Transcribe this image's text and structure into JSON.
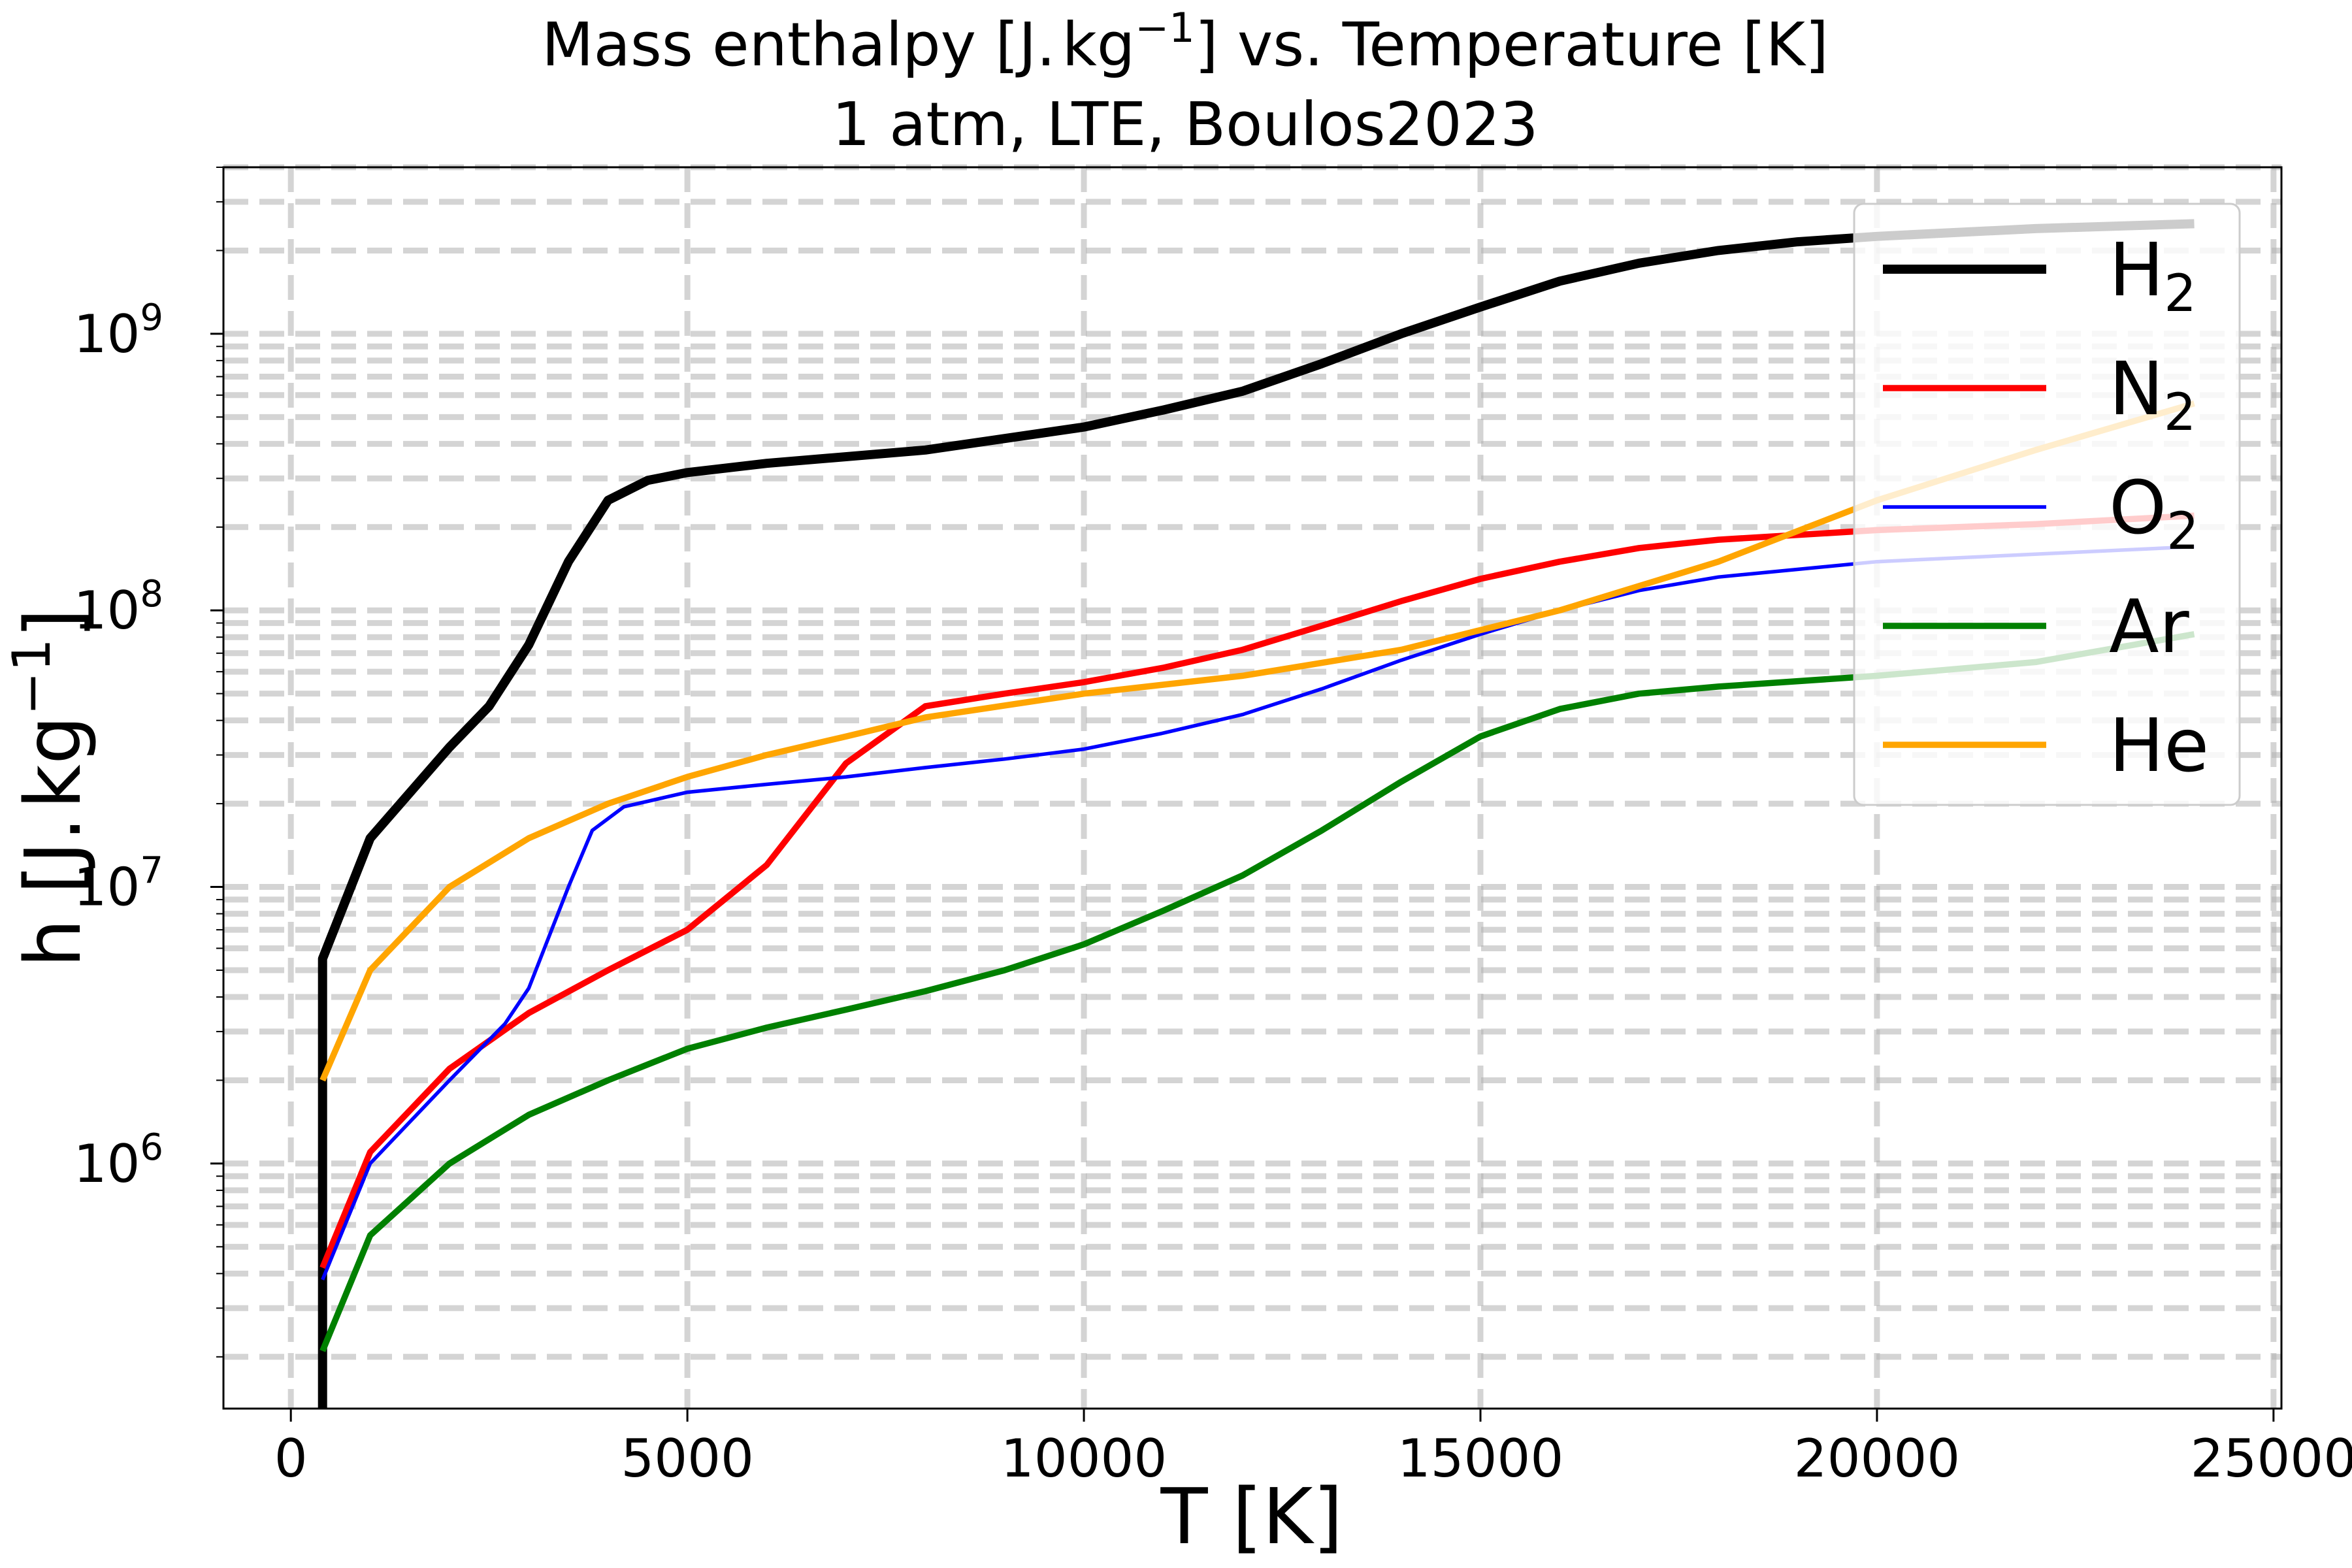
{
  "chart_data": {
    "type": "line",
    "title": {
      "line1": {
        "pre": "Mass enthalpy [J.",
        "unit": "kg",
        "exp": "−1",
        "post": "] vs. Temperature [K]"
      },
      "line2": "1 atm, LTE, Boulos2023"
    },
    "xlabel": "T [K]",
    "ylabel": {
      "pre": "h [J.",
      "unit": "kg",
      "exp": "−1",
      "post": "]"
    },
    "xlim": [
      -850,
      25100
    ],
    "ylim": [
      130000,
      4000000000
    ],
    "yscale": "log",
    "grid": true,
    "legend_position": "top-right",
    "x_ticks": [
      0,
      5000,
      10000,
      15000,
      20000,
      25000
    ],
    "x_tick_labels": [
      "0",
      "5000",
      "10000",
      "15000",
      "20000",
      "25000"
    ],
    "y_ticks": [
      {
        "value": 1000000,
        "base": "10",
        "exp": "6"
      },
      {
        "value": 10000000,
        "base": "10",
        "exp": "7"
      },
      {
        "value": 100000000,
        "base": "10",
        "exp": "8"
      },
      {
        "value": 1000000000,
        "base": "10",
        "exp": "9"
      }
    ],
    "series": [
      {
        "name": "H",
        "name_sub": "2",
        "color": "#000000",
        "width": "thick",
        "points": [
          [
            400,
            130000
          ],
          [
            400,
            5500000
          ],
          [
            1000,
            15000000
          ],
          [
            2000,
            32000000
          ],
          [
            2500,
            45000000
          ],
          [
            3000,
            75000000
          ],
          [
            3500,
            150000000
          ],
          [
            4000,
            250000000
          ],
          [
            4500,
            295000000
          ],
          [
            5000,
            315000000
          ],
          [
            6000,
            340000000
          ],
          [
            8000,
            380000000
          ],
          [
            10000,
            460000000
          ],
          [
            11000,
            530000000
          ],
          [
            12000,
            620000000
          ],
          [
            13000,
            780000000
          ],
          [
            14000,
            1000000000
          ],
          [
            15000,
            1250000000
          ],
          [
            16000,
            1550000000
          ],
          [
            17000,
            1800000000
          ],
          [
            18000,
            2000000000
          ],
          [
            19000,
            2150000000
          ],
          [
            20000,
            2250000000
          ],
          [
            22000,
            2400000000
          ],
          [
            24000,
            2500000000
          ]
        ]
      },
      {
        "name": "N",
        "name_sub": "2",
        "color": "#ff0000",
        "width": "medium",
        "points": [
          [
            400,
            420000
          ],
          [
            1000,
            1100000
          ],
          [
            2000,
            2200000
          ],
          [
            3000,
            3500000
          ],
          [
            4000,
            5000000
          ],
          [
            5000,
            7000000
          ],
          [
            6000,
            12000000
          ],
          [
            7000,
            28000000
          ],
          [
            8000,
            45000000
          ],
          [
            9000,
            50000000
          ],
          [
            10000,
            55000000
          ],
          [
            11000,
            62000000
          ],
          [
            12000,
            72000000
          ],
          [
            13000,
            88000000
          ],
          [
            14000,
            108000000
          ],
          [
            15000,
            130000000
          ],
          [
            16000,
            150000000
          ],
          [
            17000,
            168000000
          ],
          [
            18000,
            180000000
          ],
          [
            20000,
            195000000
          ],
          [
            22000,
            205000000
          ],
          [
            24000,
            220000000
          ]
        ]
      },
      {
        "name": "O",
        "name_sub": "2",
        "color": "#0000ff",
        "width": "thin",
        "points": [
          [
            400,
            380000
          ],
          [
            1000,
            1000000
          ],
          [
            2000,
            2000000
          ],
          [
            2700,
            3200000
          ],
          [
            3000,
            4300000
          ],
          [
            3500,
            10000000
          ],
          [
            3800,
            16000000
          ],
          [
            4200,
            19500000
          ],
          [
            5000,
            22000000
          ],
          [
            6000,
            23500000
          ],
          [
            7000,
            25000000
          ],
          [
            8000,
            27000000
          ],
          [
            9000,
            29000000
          ],
          [
            10000,
            31500000
          ],
          [
            11000,
            36000000
          ],
          [
            12000,
            42000000
          ],
          [
            13000,
            52000000
          ],
          [
            14000,
            66000000
          ],
          [
            15000,
            82000000
          ],
          [
            16000,
            100000000
          ],
          [
            17000,
            118000000
          ],
          [
            18000,
            132000000
          ],
          [
            20000,
            150000000
          ],
          [
            24000,
            170000000
          ]
        ]
      },
      {
        "name": "Ar",
        "name_sub": "",
        "color": "#008000",
        "width": "medium",
        "points": [
          [
            400,
            210000
          ],
          [
            1000,
            550000
          ],
          [
            2000,
            1000000
          ],
          [
            3000,
            1500000
          ],
          [
            4000,
            2000000
          ],
          [
            5000,
            2600000
          ],
          [
            6000,
            3100000
          ],
          [
            7000,
            3600000
          ],
          [
            8000,
            4200000
          ],
          [
            9000,
            5000000
          ],
          [
            10000,
            6200000
          ],
          [
            11000,
            8200000
          ],
          [
            12000,
            11000000
          ],
          [
            13000,
            16000000
          ],
          [
            14000,
            24000000
          ],
          [
            15000,
            35000000
          ],
          [
            16000,
            44000000
          ],
          [
            17000,
            50000000
          ],
          [
            18000,
            53000000
          ],
          [
            20000,
            58000000
          ],
          [
            22000,
            65000000
          ],
          [
            24000,
            82000000
          ]
        ]
      },
      {
        "name": "He",
        "name_sub": "",
        "color": "#ffa500",
        "width": "medium",
        "points": [
          [
            400,
            2000000
          ],
          [
            1000,
            5000000
          ],
          [
            2000,
            10000000
          ],
          [
            3000,
            15000000
          ],
          [
            4000,
            20000000
          ],
          [
            5000,
            25000000
          ],
          [
            6000,
            30000000
          ],
          [
            7000,
            35000000
          ],
          [
            8000,
            41000000
          ],
          [
            10000,
            50000000
          ],
          [
            12000,
            58000000
          ],
          [
            14000,
            72000000
          ],
          [
            16000,
            100000000
          ],
          [
            18000,
            150000000
          ],
          [
            20000,
            250000000
          ],
          [
            22000,
            380000000
          ],
          [
            24000,
            560000000
          ]
        ]
      }
    ]
  }
}
